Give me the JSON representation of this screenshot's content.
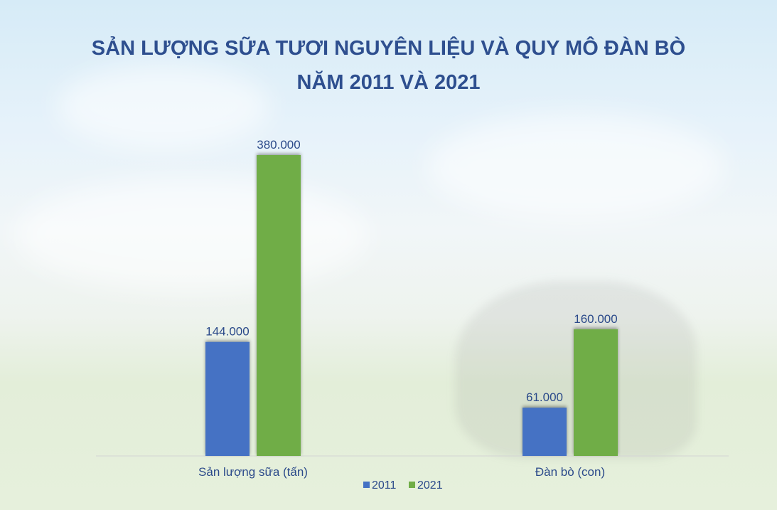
{
  "title_line1": "SẢN LƯỢNG SỮA TƯƠI NGUYÊN LIỆU VÀ QUY MÔ ĐÀN BÒ",
  "title_line2": "NĂM 2011 VÀ 2021",
  "chart_data": {
    "type": "bar",
    "title": "SẢN LƯỢNG SỮA TƯƠI NGUYÊN LIỆU VÀ QUY MÔ ĐÀN BÒ NĂM 2011 VÀ 2021",
    "categories": [
      "Sản lượng sữa (tấn)",
      "Đàn bò (con)"
    ],
    "series": [
      {
        "name": "2011",
        "color": "#4472c4",
        "values": [
          144000,
          61000
        ],
        "labels": [
          "144.000",
          "61.000"
        ]
      },
      {
        "name": "2021",
        "color": "#70ad47",
        "values": [
          380000,
          160000
        ],
        "labels": [
          "380.000",
          "160.000"
        ]
      }
    ],
    "ylim": [
      0,
      380000
    ],
    "grid": false,
    "legend": "bottom"
  }
}
